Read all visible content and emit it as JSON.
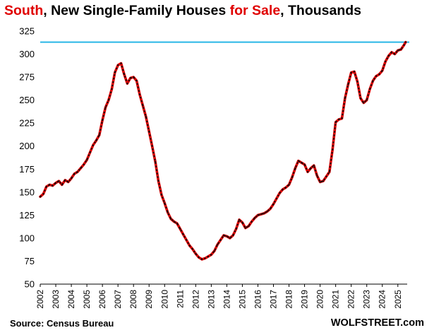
{
  "title": {
    "part1": "South",
    "part2": ", New Single-Family Houses ",
    "part3": "for Sale",
    "part4": ", Thousands"
  },
  "footer": {
    "source": "Source: Census Bureau",
    "brand": "WOLFSTREET.com"
  },
  "colors": {
    "line": "#e00000",
    "dash": "#111111",
    "reference": "#29b6e6",
    "title_accent": "#e00000"
  },
  "chart_data": {
    "type": "line",
    "title": "South, New Single-Family Houses for Sale, Thousands",
    "xlabel": "",
    "ylabel": "",
    "ylim": [
      50,
      325
    ],
    "yticks": [
      50,
      75,
      100,
      125,
      150,
      175,
      200,
      225,
      250,
      275,
      300,
      325
    ],
    "xlim": [
      2002,
      2025.6
    ],
    "xticks": [
      "2002",
      "2003",
      "2004",
      "2005",
      "2006",
      "2007",
      "2008",
      "2009",
      "2010",
      "2011",
      "2012",
      "2013",
      "2014",
      "2015",
      "2016",
      "2017",
      "2018",
      "2019",
      "2020",
      "2021",
      "2022",
      "2023",
      "2024",
      "2025"
    ],
    "grid": false,
    "legend": "none",
    "reference_line": 313,
    "series": [
      {
        "x": [
          2002.0,
          2002.2,
          2002.4,
          2002.6,
          2002.8,
          2003.0,
          2003.2,
          2003.4,
          2003.6,
          2003.8,
          2004.0,
          2004.2,
          2004.4,
          2004.6,
          2004.8,
          2005.0,
          2005.2,
          2005.4,
          2005.6,
          2005.8,
          2006.0,
          2006.2,
          2006.4,
          2006.6,
          2006.8,
          2007.0,
          2007.2,
          2007.4,
          2007.6,
          2007.8,
          2008.0,
          2008.2,
          2008.4,
          2008.6,
          2008.8,
          2009.0,
          2009.2,
          2009.4,
          2009.6,
          2009.8,
          2010.0,
          2010.2,
          2010.4,
          2010.6,
          2010.8,
          2011.0,
          2011.2,
          2011.4,
          2011.6,
          2011.8,
          2012.0,
          2012.2,
          2012.4,
          2012.6,
          2012.8,
          2013.0,
          2013.2,
          2013.4,
          2013.6,
          2013.8,
          2014.0,
          2014.2,
          2014.4,
          2014.6,
          2014.8,
          2015.0,
          2015.2,
          2015.4,
          2015.6,
          2015.8,
          2016.0,
          2016.2,
          2016.4,
          2016.6,
          2016.8,
          2017.0,
          2017.2,
          2017.4,
          2017.6,
          2017.8,
          2018.0,
          2018.2,
          2018.4,
          2018.6,
          2018.8,
          2019.0,
          2019.2,
          2019.4,
          2019.6,
          2019.8,
          2020.0,
          2020.2,
          2020.4,
          2020.6,
          2020.8,
          2021.0,
          2021.2,
          2021.4,
          2021.6,
          2021.8,
          2022.0,
          2022.2,
          2022.4,
          2022.6,
          2022.8,
          2023.0,
          2023.2,
          2023.4,
          2023.6,
          2023.8,
          2024.0,
          2024.2,
          2024.4,
          2024.6,
          2024.8,
          2025.0,
          2025.2,
          2025.4,
          2025.5
        ],
        "y": [
          145,
          148,
          156,
          158,
          157,
          160,
          162,
          158,
          163,
          161,
          165,
          170,
          172,
          176,
          180,
          185,
          193,
          201,
          206,
          212,
          228,
          242,
          250,
          262,
          280,
          288,
          290,
          278,
          268,
          274,
          275,
          271,
          256,
          244,
          232,
          216,
          200,
          183,
          162,
          147,
          138,
          128,
          121,
          118,
          116,
          110,
          104,
          98,
          92,
          88,
          83,
          79,
          77,
          78,
          80,
          82,
          86,
          93,
          98,
          103,
          102,
          100,
          103,
          110,
          120,
          117,
          111,
          113,
          118,
          122,
          125,
          126,
          127,
          129,
          132,
          137,
          143,
          149,
          153,
          155,
          158,
          166,
          176,
          184,
          182,
          180,
          172,
          176,
          179,
          168,
          161,
          162,
          167,
          172,
          196,
          226,
          229,
          230,
          252,
          267,
          280,
          281,
          270,
          252,
          247,
          250,
          262,
          271,
          276,
          278,
          282,
          292,
          298,
          302,
          300,
          304,
          305,
          310,
          313
        ]
      }
    ]
  }
}
